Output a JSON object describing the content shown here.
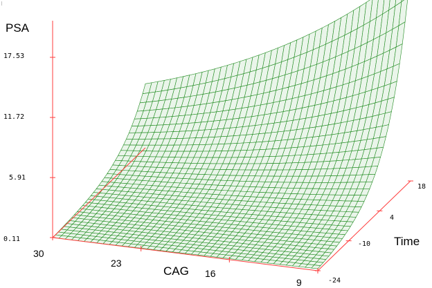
{
  "chart_data": {
    "type": "surface",
    "zlabel": "PSA",
    "xlabel": "CAG",
    "ylabel": "Time",
    "z_ticks": [
      "0.11",
      "5.91",
      "11.72",
      "17.53"
    ],
    "cag_ticks": [
      "30",
      "23",
      "16",
      "9"
    ],
    "time_ticks": [
      "-24",
      "-10",
      "4",
      "18"
    ],
    "cag_range": [
      9,
      30
    ],
    "time_range": [
      -24,
      18
    ],
    "z_range": [
      0.11,
      20.5
    ],
    "grid": false,
    "legend": "none",
    "surface_corner_values": [
      {
        "cag": 30,
        "time": -24,
        "psa": 0.11
      },
      {
        "cag": 30,
        "time": 18,
        "psa": 6.3
      },
      {
        "cag": 9,
        "time": -24,
        "psa": 0.3
      },
      {
        "cag": 9,
        "time": 18,
        "psa": 20.5
      }
    ],
    "mesh_color": "#1e8a1e",
    "mesh_fill": "#eaf5ea",
    "axis_color": "#ff3b3b"
  }
}
